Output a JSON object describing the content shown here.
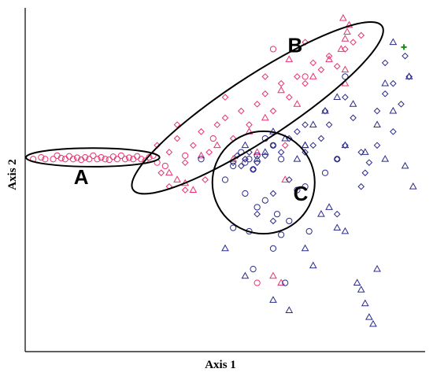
{
  "chart_data": {
    "type": "scatter",
    "x_label": "Axis 1",
    "y_label": "Axis 2",
    "xlim": [
      0,
      100
    ],
    "ylim": [
      0,
      100
    ],
    "series": [
      {
        "marker": "circle",
        "color": "#e8336f",
        "x": [
          2,
          4,
          5,
          7,
          8,
          9,
          10,
          11,
          12,
          13,
          14,
          15,
          16,
          17,
          18,
          19,
          20,
          21,
          22,
          23,
          24,
          25,
          26,
          27,
          28,
          29,
          30,
          31,
          32,
          33,
          35,
          40,
          58,
          62,
          47,
          70
        ],
        "values": [
          56,
          56.5,
          56,
          56,
          57,
          56.3,
          56,
          56.8,
          56,
          56.4,
          55.8,
          56.5,
          56,
          57,
          56,
          56.5,
          56,
          55.8,
          56.7,
          56,
          57,
          56,
          56.4,
          56,
          56.8,
          56,
          55.5,
          56.5,
          57,
          55,
          54,
          57,
          20,
          88,
          62,
          80
        ]
      },
      {
        "marker": "diamond",
        "color": "#e8336f",
        "x": [
          34,
          36,
          38,
          40,
          42,
          44,
          46,
          48,
          50,
          52,
          54,
          56,
          58,
          60,
          62,
          64,
          66,
          68,
          70,
          72,
          74,
          76,
          78,
          80,
          82,
          84,
          36,
          40,
          45,
          50,
          55,
          60,
          33,
          38,
          65,
          70
        ],
        "values": [
          52,
          58,
          62,
          55,
          60,
          64,
          58,
          66,
          68,
          62,
          70,
          66,
          72,
          75,
          70,
          78,
          74,
          80,
          78,
          84,
          82,
          86,
          83,
          88,
          90,
          92,
          48,
          47,
          50,
          74,
          56,
          80,
          60,
          66,
          60,
          90
        ]
      },
      {
        "marker": "triangle",
        "color": "#e8336f",
        "x": [
          36,
          40,
          44,
          48,
          52,
          56,
          60,
          64,
          68,
          72,
          76,
          79,
          80,
          80.5,
          81,
          79.5,
          80,
          80,
          38,
          42,
          62,
          64,
          65,
          66,
          58
        ],
        "values": [
          52,
          49,
          57,
          60,
          56,
          64,
          68,
          76,
          72,
          80,
          85,
          88,
          91,
          93,
          95,
          97,
          82,
          78,
          50,
          47,
          22,
          20,
          50,
          85,
          58
        ]
      },
      {
        "marker": "diamond",
        "color": "#2b2b8c",
        "x": [
          52,
          53,
          54,
          55,
          56,
          57,
          58,
          60,
          62,
          64,
          66,
          68,
          70,
          72,
          74,
          76,
          78,
          80,
          82,
          84,
          86,
          88,
          90,
          92,
          94,
          96,
          85,
          88,
          92,
          80,
          75,
          70,
          66,
          62,
          78,
          84,
          90,
          95,
          58,
          62
        ],
        "values": [
          55,
          57,
          54,
          56,
          58,
          53,
          55,
          57,
          60,
          58,
          62,
          64,
          58,
          60,
          62,
          66,
          56,
          60,
          68,
          58,
          55,
          70,
          75,
          78,
          72,
          80,
          52,
          60,
          64,
          74,
          70,
          66,
          50,
          46,
          40,
          48,
          84,
          86,
          40,
          38
        ]
      },
      {
        "marker": "circle",
        "color": "#2b2b8c",
        "x": [
          44,
          50,
          52,
          54,
          55,
          56,
          57,
          58,
          60,
          62,
          64,
          55,
          58,
          60,
          63,
          66,
          68,
          52,
          56,
          62,
          65,
          70,
          75,
          78,
          80,
          71,
          64,
          57
        ],
        "values": [
          56,
          50,
          54,
          58,
          55,
          56,
          53,
          57,
          62,
          60,
          56,
          46,
          42,
          44,
          40,
          38,
          47,
          36,
          35,
          30,
          20,
          48,
          52,
          56,
          80,
          35,
          34,
          24
        ]
      },
      {
        "marker": "triangle",
        "color": "#2b2b8c",
        "x": [
          50,
          55,
          58,
          60,
          62,
          65,
          68,
          70,
          72,
          75,
          78,
          80,
          82,
          85,
          88,
          90,
          92,
          95,
          97,
          96,
          83,
          85,
          86,
          87,
          84,
          88,
          80,
          78,
          72,
          70,
          74,
          76,
          66,
          55,
          62,
          70,
          92,
          90
        ],
        "values": [
          30,
          22,
          56,
          58,
          64,
          62,
          56,
          60,
          66,
          70,
          74,
          60,
          72,
          58,
          66,
          56,
          70,
          54,
          48,
          80,
          20,
          14,
          10,
          8,
          18,
          24,
          35,
          36,
          25,
          30,
          40,
          42,
          12,
          60,
          15,
          60,
          90,
          78
        ]
      },
      {
        "marker": "plus",
        "color": "#1a8a1a",
        "x": [
          94.7
        ],
        "values": [
          88.6
        ]
      }
    ],
    "ellipses": [
      {
        "label": "A",
        "cx": 16.9,
        "cy": 56.5,
        "rx": 16.7,
        "ry": 2.7,
        "angle": 0,
        "label_x": 14,
        "label_y": 50.3
      },
      {
        "label": "B",
        "cx": 58.1,
        "cy": 70.9,
        "rx": 39.2,
        "ry": 8.7,
        "angle": 37.8,
        "label_x": 67.5,
        "label_y": 88.6
      },
      {
        "label": "C",
        "cx": 59.6,
        "cy": 49.2,
        "rx": 12.8,
        "ry": 14.9,
        "angle": 0,
        "label_x": 68.9,
        "label_y": 45.5
      }
    ]
  }
}
